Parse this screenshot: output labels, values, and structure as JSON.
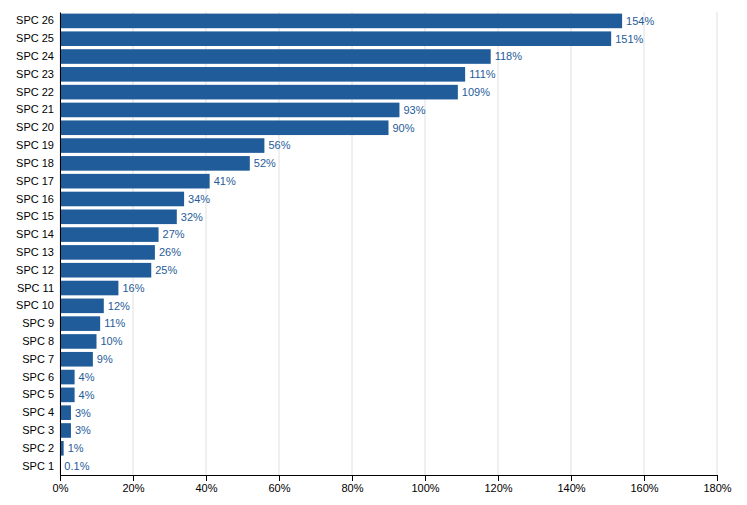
{
  "chart_data": {
    "type": "bar",
    "orientation": "horizontal",
    "categories": [
      "SPC 26",
      "SPC 25",
      "SPC 24",
      "SPC 23",
      "SPC 22",
      "SPC 21",
      "SPC 20",
      "SPC 19",
      "SPC 18",
      "SPC 17",
      "SPC 16",
      "SPC 15",
      "SPC 14",
      "SPC 13",
      "SPC 12",
      "SPC 11",
      "SPC 10",
      "SPC 9",
      "SPC 8",
      "SPC 7",
      "SPC 6",
      "SPC 5",
      "SPC 4",
      "SPC 3",
      "SPC 2",
      "SPC 1"
    ],
    "values": [
      154,
      151,
      118,
      111,
      109,
      93,
      90,
      56,
      52,
      41,
      34,
      32,
      27,
      26,
      25,
      16,
      12,
      11,
      10,
      9,
      4,
      4,
      3,
      3,
      1,
      0.1
    ],
    "value_labels": [
      "154%",
      "151%",
      "118%",
      "111%",
      "109%",
      "93%",
      "90%",
      "56%",
      "52%",
      "41%",
      "34%",
      "32%",
      "27%",
      "26%",
      "25%",
      "16%",
      "12%",
      "11%",
      "10%",
      "9%",
      "4%",
      "4%",
      "3%",
      "3%",
      "1%",
      "0.1%"
    ],
    "color": "#1F5C99",
    "xlim": [
      0,
      180
    ],
    "xticks": [
      {
        "value": 0,
        "label": "0%"
      },
      {
        "value": 20,
        "label": "20%"
      },
      {
        "value": 40,
        "label": "40%"
      },
      {
        "value": 60,
        "label": "60%"
      },
      {
        "value": 80,
        "label": "80%"
      },
      {
        "value": 100,
        "label": "100%"
      },
      {
        "value": 120,
        "label": "120%"
      },
      {
        "value": 140,
        "label": "140%"
      },
      {
        "value": 160,
        "label": "160%"
      },
      {
        "value": 180,
        "label": "180%"
      }
    ],
    "grid": true,
    "data_labels": true
  }
}
